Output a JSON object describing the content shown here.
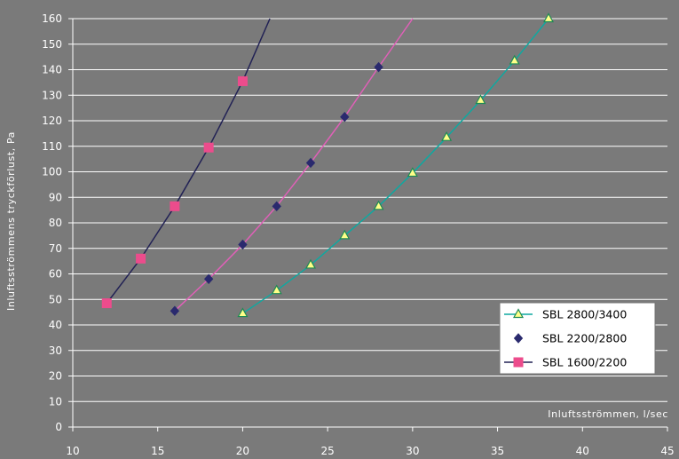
{
  "chart_data": {
    "type": "line",
    "title": "",
    "xlabel": "Inluftsströmmen, l/sec",
    "ylabel": "Inluftsströmmens tryckförlust, Pa",
    "xlim": [
      10,
      45
    ],
    "ylim": [
      0,
      160
    ],
    "x_ticks": [
      "10",
      "15",
      "20",
      "25",
      "30",
      "35",
      "40",
      "45"
    ],
    "y_ticks": [
      "0",
      "10",
      "20",
      "30",
      "40",
      "50",
      "60",
      "70",
      "80",
      "90",
      "100",
      "110",
      "120",
      "130",
      "140",
      "150",
      "160"
    ],
    "grid": true,
    "legend_position": "bottom-right",
    "background_color": "#7a7a7a",
    "series": [
      {
        "name": "SBL 2800/3400",
        "color": "#0fa8a0",
        "marker": "triangle",
        "marker_fill": "#ffff88",
        "marker_stroke": "#1e8a55",
        "points": [
          [
            20,
            44.5
          ],
          [
            22,
            53.5
          ],
          [
            24,
            63.5
          ],
          [
            26,
            75
          ],
          [
            28,
            86.5
          ],
          [
            30,
            99.5
          ],
          [
            32,
            113.5
          ],
          [
            34,
            128
          ],
          [
            36,
            143.5
          ],
          [
            38,
            160
          ]
        ],
        "line": [
          [
            20,
            44.5
          ],
          [
            22,
            53.5
          ],
          [
            24,
            63.5
          ],
          [
            26,
            75
          ],
          [
            28,
            86.5
          ],
          [
            30,
            99.5
          ],
          [
            32,
            113.5
          ],
          [
            34,
            128
          ],
          [
            36,
            143.5
          ],
          [
            38,
            160
          ]
        ]
      },
      {
        "name": "SBL 2200/2800",
        "color": "#e060b8",
        "marker": "diamond",
        "marker_fill": "#2a2a6e",
        "marker_stroke": "#2a2a6e",
        "points": [
          [
            16,
            45.5
          ],
          [
            18,
            58
          ],
          [
            20,
            71.5
          ],
          [
            22,
            86.5
          ],
          [
            24,
            103.5
          ],
          [
            26,
            121.5
          ],
          [
            28,
            141
          ]
        ],
        "line": [
          [
            16,
            45.5
          ],
          [
            18,
            58
          ],
          [
            20,
            71.5
          ],
          [
            22,
            86.5
          ],
          [
            24,
            103.5
          ],
          [
            26,
            121.5
          ],
          [
            28,
            141
          ],
          [
            30,
            160
          ]
        ]
      },
      {
        "name": "SBL 1600/2200",
        "color": "#222255",
        "marker": "square",
        "marker_fill": "#ec4c8c",
        "marker_stroke": "#ec4c8c",
        "points": [
          [
            12,
            48.5
          ],
          [
            14,
            66
          ],
          [
            16,
            86.5
          ],
          [
            18,
            109.5
          ],
          [
            20,
            135.5
          ]
        ],
        "line": [
          [
            12,
            48.5
          ],
          [
            14,
            66
          ],
          [
            16,
            86.5
          ],
          [
            18,
            109.5
          ],
          [
            20,
            135.5
          ],
          [
            21.6,
            160
          ]
        ]
      }
    ]
  }
}
